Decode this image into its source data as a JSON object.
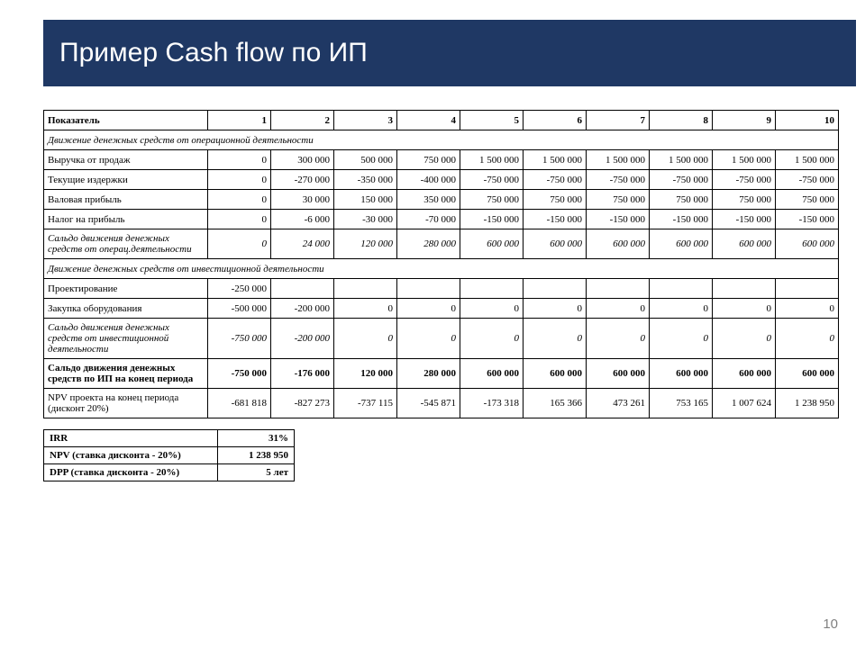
{
  "title": "Пример Cash flow по ИП",
  "page_number": "10",
  "colors": {
    "title_bar_bg": "#1f3864",
    "title_text": "#ffffff",
    "border": "#000000",
    "page_num": "#808080"
  },
  "table": {
    "header_label": "Показатель",
    "periods": [
      "1",
      "2",
      "3",
      "4",
      "5",
      "6",
      "7",
      "8",
      "9",
      "10"
    ],
    "rows": [
      {
        "type": "section",
        "label": "Движение денежных средств от операционной деятельности"
      },
      {
        "type": "data",
        "label": "Выручка от продаж",
        "values": [
          "0",
          "300 000",
          "500 000",
          "750 000",
          "1 500 000",
          "1 500 000",
          "1 500 000",
          "1 500 000",
          "1 500 000",
          "1 500 000"
        ]
      },
      {
        "type": "data",
        "label": "Текущие издержки",
        "values": [
          "0",
          "-270 000",
          "-350 000",
          "-400 000",
          "-750 000",
          "-750 000",
          "-750 000",
          "-750 000",
          "-750 000",
          "-750 000"
        ]
      },
      {
        "type": "data",
        "label": "Валовая прибыль",
        "values": [
          "0",
          "30 000",
          "150 000",
          "350 000",
          "750 000",
          "750 000",
          "750 000",
          "750 000",
          "750 000",
          "750 000"
        ]
      },
      {
        "type": "data",
        "label": "Налог на прибыль",
        "values": [
          "0",
          "-6 000",
          "-30 000",
          "-70 000",
          "-150 000",
          "-150 000",
          "-150 000",
          "-150 000",
          "-150 000",
          "-150 000"
        ]
      },
      {
        "type": "data",
        "style": "italic tall",
        "label": "Сальдо движения денежных средств от операц.деятельности",
        "values": [
          "0",
          "24 000",
          "120 000",
          "280 000",
          "600 000",
          "600 000",
          "600 000",
          "600 000",
          "600 000",
          "600 000"
        ]
      },
      {
        "type": "section",
        "label": "Движение денежных средств от инвестиционной деятельности"
      },
      {
        "type": "data",
        "label": "Проектирование",
        "values": [
          "-250 000",
          "",
          "",
          "",
          "",
          "",
          "",
          "",
          "",
          ""
        ]
      },
      {
        "type": "data",
        "label": "Закупка оборудования",
        "values": [
          "-500 000",
          "-200 000",
          "0",
          "0",
          "0",
          "0",
          "0",
          "0",
          "0",
          "0"
        ]
      },
      {
        "type": "data",
        "style": "italic tall3",
        "label": "Сальдо движения денежных средств от инвестиционной деятельности",
        "values": [
          "-750 000",
          "-200 000",
          "0",
          "0",
          "0",
          "0",
          "0",
          "0",
          "0",
          "0"
        ]
      },
      {
        "type": "data",
        "style": "bold tall",
        "label": "Сальдо движения денежных средств по ИП на конец периода",
        "values": [
          "-750 000",
          "-176 000",
          "120 000",
          "280 000",
          "600 000",
          "600 000",
          "600 000",
          "600 000",
          "600 000",
          "600 000"
        ]
      },
      {
        "type": "data",
        "style": "tall",
        "label": "NPV проекта на конец периода (дисконт 20%)",
        "values": [
          "-681 818",
          "-827 273",
          "-737 115",
          "-545 871",
          "-173 318",
          "165 366",
          "473 261",
          "753 165",
          "1 007 624",
          "1 238 950"
        ]
      }
    ]
  },
  "summary": {
    "rows": [
      {
        "label": "IRR",
        "value": "31%"
      },
      {
        "label": "NPV (ставка дисконта - 20%)",
        "value": "1 238 950"
      },
      {
        "label": "DPP (ставка дисконта - 20%)",
        "value": "5 лет"
      }
    ]
  }
}
